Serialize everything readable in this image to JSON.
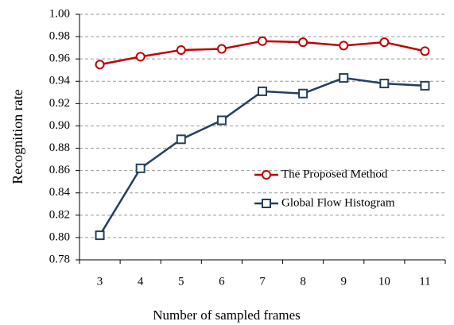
{
  "chart_data": {
    "type": "line",
    "xlabel": "Number of sampled frames",
    "ylabel": "Recognition  rate",
    "categories": [
      "3",
      "4",
      "5",
      "6",
      "7",
      "8",
      "9",
      "10",
      "11"
    ],
    "series": [
      {
        "name": "The Proposed Method",
        "color": "#c00000",
        "marker": "circle",
        "values": [
          0.955,
          0.962,
          0.968,
          0.969,
          0.976,
          0.975,
          0.972,
          0.975,
          0.967
        ]
      },
      {
        "name": "Global Flow Histogram",
        "color": "#243f60",
        "marker": "square",
        "values": [
          0.802,
          0.862,
          0.888,
          0.905,
          0.931,
          0.929,
          0.943,
          0.938,
          0.936
        ]
      }
    ],
    "ylim": [
      0.78,
      1.0
    ],
    "yticks": [
      0.78,
      {
        "value": 0.8,
        "label": "0.80"
      },
      0.82,
      0.84,
      0.86,
      0.88,
      {
        "value": 0.9,
        "label": "0.90"
      },
      0.92,
      0.94,
      0.96,
      0.98,
      {
        "value": 1.0,
        "label": "1.00"
      }
    ],
    "grid": true,
    "legend": "center-right"
  }
}
